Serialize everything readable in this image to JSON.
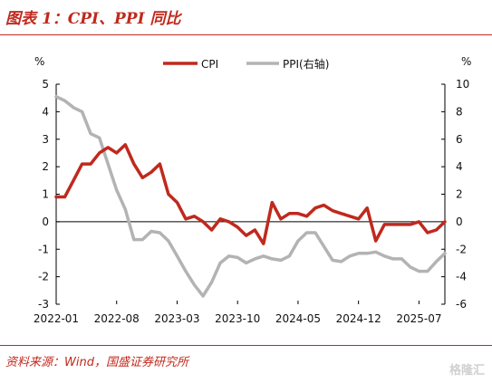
{
  "title": "图表 1：CPI、PPI 同比",
  "source": "资料来源：Wind，国盛证券研究所",
  "watermark": "格隆汇",
  "chart_data": {
    "type": "line",
    "y_left": {
      "unit": "%",
      "ylim": [
        -3,
        5
      ],
      "ticks": [
        "5",
        "4",
        "3",
        "2",
        "1",
        "0",
        "-1",
        "-2",
        "-3"
      ]
    },
    "y_right": {
      "unit": "%",
      "ylim": [
        -6,
        10
      ],
      "ticks": [
        "10",
        "8",
        "6",
        "4",
        "2",
        "0",
        "-2",
        "-4",
        "-6"
      ]
    },
    "x_ticks": [
      "2022-01",
      "2022-08",
      "2023-03",
      "2023-10",
      "2024-05",
      "2024-12",
      "2025-07"
    ],
    "legend": {
      "placement": "top"
    },
    "series": [
      {
        "name": "CPI",
        "axis": "left",
        "color": "#c0291d",
        "values": [
          0.9,
          0.9,
          1.5,
          2.1,
          2.1,
          2.5,
          2.7,
          2.5,
          2.8,
          2.1,
          1.6,
          1.8,
          2.1,
          1.0,
          0.7,
          0.1,
          0.2,
          0.0,
          -0.3,
          0.1,
          0.0,
          -0.2,
          -0.5,
          -0.3,
          -0.8,
          0.7,
          0.1,
          0.3,
          0.3,
          0.2,
          0.5,
          0.6,
          0.4,
          0.3,
          0.2,
          0.1,
          0.5,
          -0.7,
          -0.1,
          -0.1,
          -0.1,
          -0.1,
          0.0,
          -0.4,
          -0.3,
          0.0
        ]
      },
      {
        "name": "PPI(右轴)",
        "axis": "right",
        "color": "#b3b3b3",
        "values": [
          9.1,
          8.8,
          8.3,
          8.0,
          6.4,
          6.1,
          4.2,
          2.3,
          0.9,
          -1.3,
          -1.3,
          -0.7,
          -0.8,
          -1.4,
          -2.5,
          -3.6,
          -4.6,
          -5.4,
          -4.4,
          -3.0,
          -2.5,
          -2.6,
          -3.0,
          -2.7,
          -2.5,
          -2.7,
          -2.8,
          -2.5,
          -1.4,
          -0.8,
          -0.8,
          -1.8,
          -2.8,
          -2.9,
          -2.5,
          -2.3,
          -2.3,
          -2.2,
          -2.5,
          -2.7,
          -2.7,
          -3.3,
          -3.6,
          -3.6,
          -2.9,
          -2.3
        ]
      }
    ]
  }
}
